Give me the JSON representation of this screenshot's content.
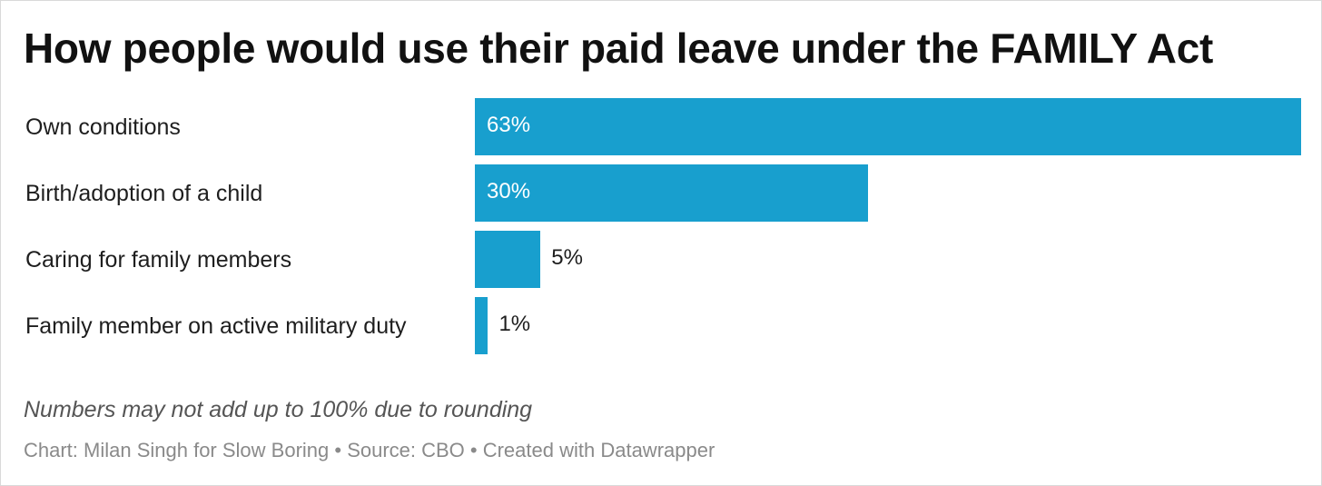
{
  "chart_data": {
    "type": "bar",
    "orientation": "horizontal",
    "title": "How people would use their paid leave under the FAMILY Act",
    "categories": [
      "Own conditions",
      "Birth/adoption of a child",
      "Caring for family members",
      "Family member on active military duty"
    ],
    "values": [
      63,
      30,
      5,
      1
    ],
    "value_labels": [
      "63%",
      "30%",
      "5%",
      "1%"
    ],
    "xlim": [
      0,
      63
    ],
    "grid": false,
    "legend": "none",
    "bar_color": "#189fce",
    "notes": "Numbers may not add up to 100% due to rounding",
    "credits": "Chart: Milan Singh for Slow Boring • Source: CBO • Created with Datawrapper"
  }
}
